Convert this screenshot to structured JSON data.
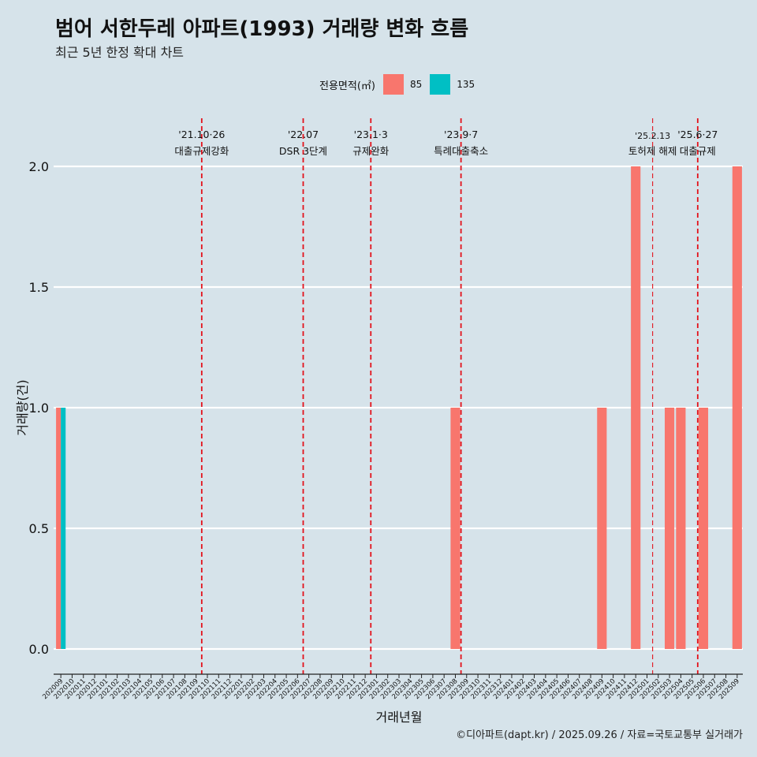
{
  "title": "범어 서한두레 아파트(1993) 거래량 변화 흐름",
  "subtitle": "최근 5년 한정 확대 차트",
  "caption": "©디아파트(dapt.kr) / 2025.09.26 / 자료=국토교통부 실거래가",
  "legend": {
    "title": "전용면적(㎡)",
    "items": [
      {
        "label": "85",
        "color": "#f8766d"
      },
      {
        "label": "135",
        "color": "#00bfc4"
      }
    ]
  },
  "chart_data": {
    "type": "bar",
    "xlabel": "거래년월",
    "ylabel": "거래량(건)",
    "ylim": [
      0,
      2.0
    ],
    "yticks": [
      "0.0",
      "0.5",
      "1.0",
      "1.5",
      "2.0"
    ],
    "categories": [
      "202009",
      "202010",
      "202011",
      "202012",
      "202101",
      "202102",
      "202103",
      "202104",
      "202105",
      "202106",
      "202107",
      "202108",
      "202109",
      "202110",
      "202111",
      "202112",
      "202201",
      "202202",
      "202203",
      "202204",
      "202205",
      "202206",
      "202207",
      "202208",
      "202209",
      "202210",
      "202211",
      "202212",
      "202301",
      "202302",
      "202303",
      "202304",
      "202305",
      "202306",
      "202307",
      "202308",
      "202309",
      "202310",
      "202311",
      "202312",
      "202401",
      "202402",
      "202403",
      "202404",
      "202405",
      "202406",
      "202407",
      "202408",
      "202409",
      "202410",
      "202411",
      "202412",
      "202501",
      "202502",
      "202503",
      "202504",
      "202505",
      "202506",
      "202507",
      "202508",
      "202509"
    ],
    "series": [
      {
        "name": "85",
        "color": "#f8766d",
        "values": {
          "202009": 1,
          "202308": 1,
          "202409": 1,
          "202412": 2,
          "202503": 1,
          "202504": 1,
          "202506": 1,
          "202509": 2
        }
      },
      {
        "name": "135",
        "color": "#00bfc4",
        "values": {
          "202009": 1
        }
      }
    ],
    "events": [
      {
        "month": "202110",
        "date": "'21.10·26",
        "label": "대출규제강화"
      },
      {
        "month": "202207",
        "date": "'22.07",
        "label": "DSR 3단계"
      },
      {
        "month": "202301",
        "date": "'23.1·3",
        "label": "규제완화"
      },
      {
        "month": "202309",
        "date": "'23.9·7",
        "label": "특례대출축소"
      },
      {
        "month": "202502",
        "date": "'25.2.13",
        "label": "토허제 해제"
      },
      {
        "month": "202506",
        "date": "'25.6·27",
        "label": "대출규제"
      }
    ]
  }
}
